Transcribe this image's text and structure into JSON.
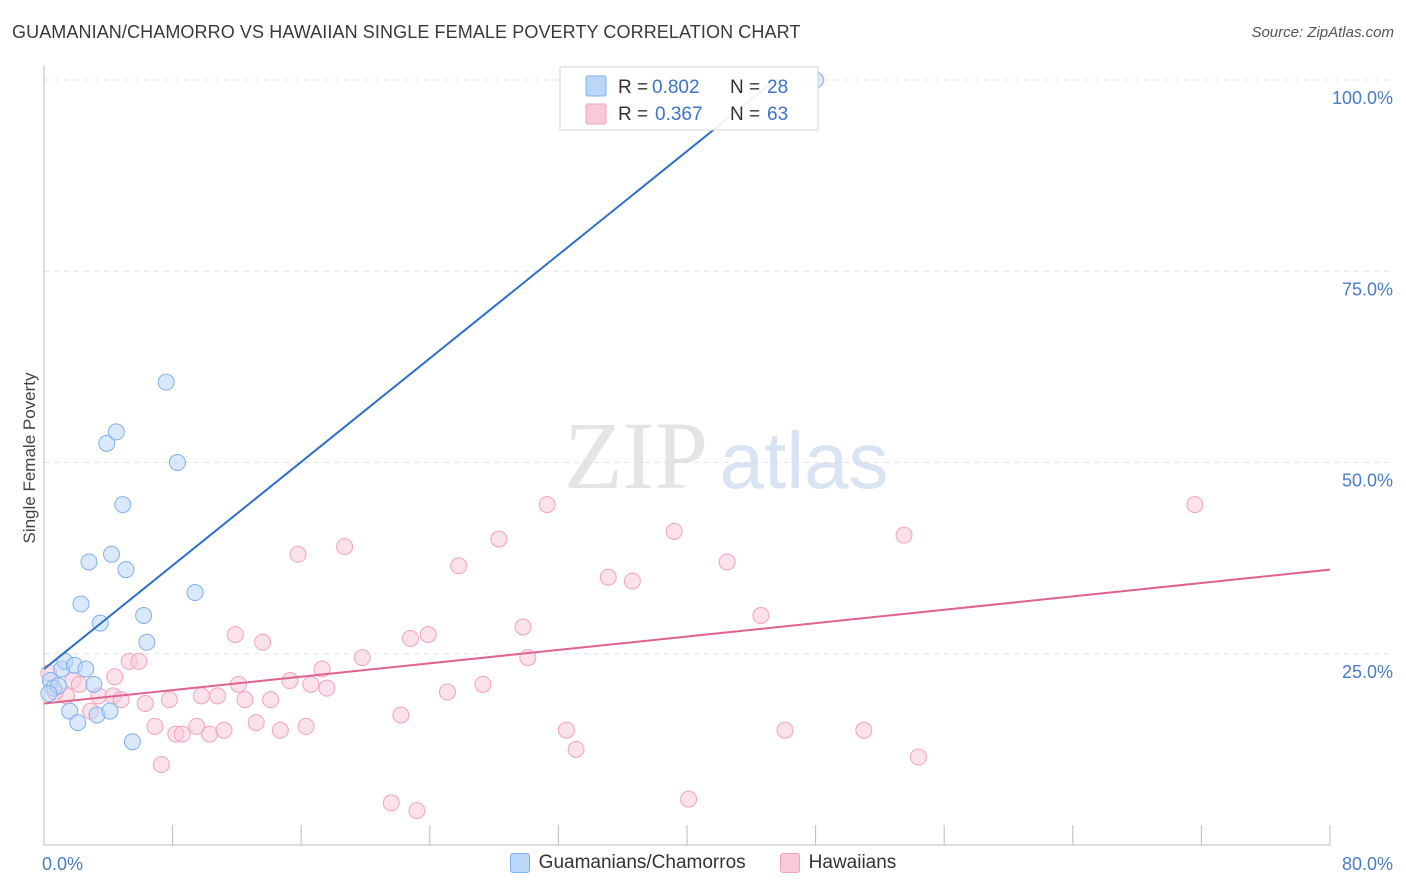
{
  "chart_data": {
    "type": "scatter",
    "title": "GUAMANIAN/CHAMORRO VS HAWAIIAN SINGLE FEMALE POVERTY CORRELATION CHART",
    "source": "Source: ZipAtlas.com",
    "ylabel": "Single Female Poverty",
    "xlim": [
      0,
      80
    ],
    "ylim": [
      0,
      100
    ],
    "x_tick_labels": [
      "0.0%",
      "80.0%"
    ],
    "y_ticks": [
      {
        "value": 25,
        "label": "25.0%"
      },
      {
        "value": 50,
        "label": "50.0%"
      },
      {
        "value": 75,
        "label": "75.0%"
      },
      {
        "value": 100,
        "label": "100.0%"
      }
    ],
    "watermark": {
      "part1": "ZIP",
      "part2": "atlas"
    },
    "series": [
      {
        "name": "Guamanians/Chamorros",
        "color": "#7fb0ef",
        "fill": "#bcd6f7",
        "line_color": "#2f6fc7",
        "R": "0.802",
        "N": "28",
        "trend": {
          "x0": 0,
          "y0": 23,
          "x1": 45.5,
          "y1": 100
        },
        "points": [
          [
            0.4,
            21.5
          ],
          [
            0.6,
            20.5
          ],
          [
            0.9,
            20.8
          ],
          [
            1.1,
            23
          ],
          [
            1.3,
            24
          ],
          [
            1.6,
            17.5
          ],
          [
            1.9,
            23.5
          ],
          [
            2.1,
            16
          ],
          [
            2.3,
            31.5
          ],
          [
            2.6,
            23
          ],
          [
            2.8,
            37
          ],
          [
            3.1,
            21
          ],
          [
            3.3,
            17
          ],
          [
            3.5,
            29
          ],
          [
            3.9,
            52.5
          ],
          [
            4.1,
            17.5
          ],
          [
            4.2,
            38
          ],
          [
            4.5,
            54
          ],
          [
            4.9,
            44.5
          ],
          [
            5.1,
            36
          ],
          [
            5.5,
            13.5
          ],
          [
            6.2,
            30
          ],
          [
            6.4,
            26.5
          ],
          [
            7.6,
            60.5
          ],
          [
            8.3,
            50
          ],
          [
            9.4,
            33
          ],
          [
            48,
            100
          ],
          [
            0.3,
            19.8
          ]
        ]
      },
      {
        "name": "Hawaiians",
        "color": "#f1a3bd",
        "fill": "#f8cad9",
        "line_color": "#e0628e",
        "R": "0.367",
        "N": "63",
        "trend": {
          "x0": 0,
          "y0": 18.5,
          "x1": 80,
          "y1": 36
        },
        "points": [
          [
            0.3,
            22.5
          ],
          [
            1.4,
            19.5
          ],
          [
            1.8,
            21.5
          ],
          [
            2.9,
            17.5
          ],
          [
            3.4,
            19.5
          ],
          [
            4.3,
            19.5
          ],
          [
            4.4,
            22
          ],
          [
            4.8,
            19
          ],
          [
            5.3,
            24
          ],
          [
            5.9,
            24
          ],
          [
            6.3,
            18.5
          ],
          [
            6.9,
            15.5
          ],
          [
            7.3,
            10.5
          ],
          [
            7.8,
            19
          ],
          [
            8.2,
            14.5
          ],
          [
            8.6,
            14.5
          ],
          [
            9.5,
            15.5
          ],
          [
            9.8,
            19.5
          ],
          [
            10.3,
            14.5
          ],
          [
            10.8,
            19.5
          ],
          [
            11.2,
            15
          ],
          [
            11.9,
            27.5
          ],
          [
            12.1,
            21
          ],
          [
            12.5,
            19
          ],
          [
            13.2,
            16
          ],
          [
            13.6,
            26.5
          ],
          [
            14.1,
            19
          ],
          [
            14.7,
            15
          ],
          [
            15.3,
            21.5
          ],
          [
            15.8,
            38
          ],
          [
            16.3,
            15.5
          ],
          [
            16.6,
            21
          ],
          [
            17.3,
            23
          ],
          [
            17.6,
            20.5
          ],
          [
            18.7,
            39
          ],
          [
            19.8,
            24.5
          ],
          [
            21.6,
            5.5
          ],
          [
            22.2,
            17
          ],
          [
            22.8,
            27
          ],
          [
            23.2,
            4.5
          ],
          [
            23.9,
            27.5
          ],
          [
            25.1,
            20
          ],
          [
            25.8,
            36.5
          ],
          [
            27.3,
            21
          ],
          [
            28.3,
            40
          ],
          [
            29.8,
            28.5
          ],
          [
            30.1,
            24.5
          ],
          [
            31.3,
            44.5
          ],
          [
            32.5,
            15
          ],
          [
            33.1,
            12.5
          ],
          [
            35.1,
            35
          ],
          [
            36.6,
            34.5
          ],
          [
            39.2,
            41
          ],
          [
            40.1,
            6
          ],
          [
            42.5,
            37
          ],
          [
            44.6,
            30
          ],
          [
            46.1,
            15
          ],
          [
            51,
            15
          ],
          [
            53.5,
            40.5
          ],
          [
            54.4,
            11.5
          ],
          [
            71.6,
            44.5
          ],
          [
            2.2,
            21
          ],
          [
            0.7,
            20
          ]
        ]
      }
    ]
  }
}
